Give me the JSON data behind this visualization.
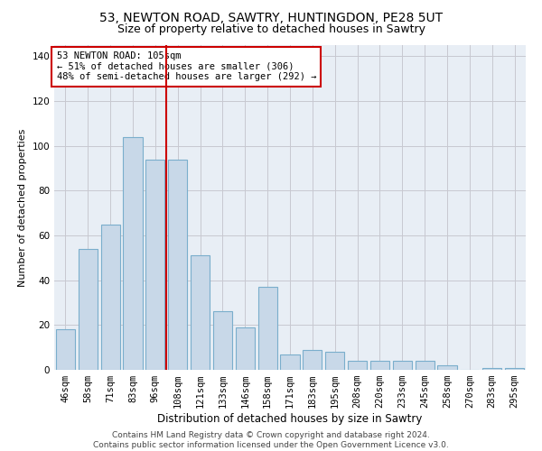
{
  "title_line1": "53, NEWTON ROAD, SAWTRY, HUNTINGDON, PE28 5UT",
  "title_line2": "Size of property relative to detached houses in Sawtry",
  "xlabel": "Distribution of detached houses by size in Sawtry",
  "ylabel": "Number of detached properties",
  "categories": [
    "46sqm",
    "58sqm",
    "71sqm",
    "83sqm",
    "96sqm",
    "108sqm",
    "121sqm",
    "133sqm",
    "146sqm",
    "158sqm",
    "171sqm",
    "183sqm",
    "195sqm",
    "208sqm",
    "220sqm",
    "233sqm",
    "245sqm",
    "258sqm",
    "270sqm",
    "283sqm",
    "295sqm"
  ],
  "values": [
    18,
    54,
    65,
    104,
    94,
    94,
    51,
    26,
    19,
    37,
    7,
    9,
    8,
    4,
    4,
    4,
    4,
    2,
    0,
    1,
    1
  ],
  "bar_color": "#c8d8e8",
  "bar_edge_color": "#7aaecc",
  "vline_color": "#cc0000",
  "vline_pos": 4.5,
  "annotation_text": "53 NEWTON ROAD: 105sqm\n← 51% of detached houses are smaller (306)\n48% of semi-detached houses are larger (292) →",
  "annotation_box_color": "white",
  "annotation_box_edge_color": "#cc0000",
  "ylim": [
    0,
    145
  ],
  "yticks": [
    0,
    20,
    40,
    60,
    80,
    100,
    120,
    140
  ],
  "grid_color": "#c8c8d0",
  "bg_color": "#e8eef5",
  "footnote": "Contains HM Land Registry data © Crown copyright and database right 2024.\nContains public sector information licensed under the Open Government Licence v3.0.",
  "footnote_fontsize": 6.5,
  "title_fontsize1": 10,
  "title_fontsize2": 9,
  "xlabel_fontsize": 8.5,
  "ylabel_fontsize": 8,
  "tick_fontsize": 7.5,
  "annot_fontsize": 7.5
}
